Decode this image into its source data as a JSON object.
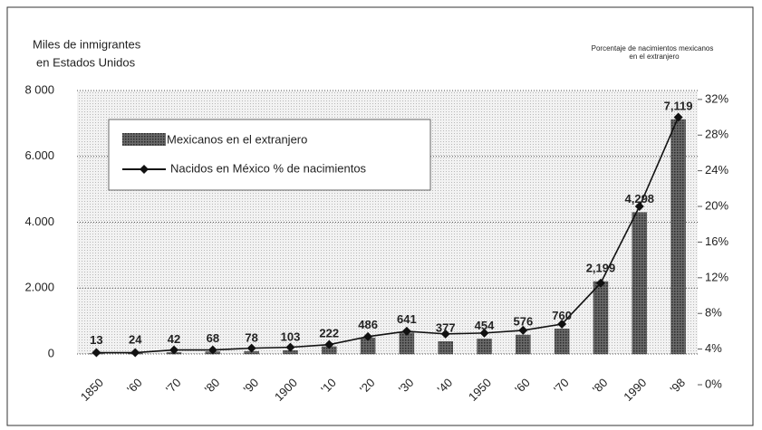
{
  "chart_data": {
    "type": "bar",
    "y_label": [
      "Miles de inmigrantes",
      "en Estados Unidos"
    ],
    "y2_label": [
      "Porcentaje de nacimientos mexicanos",
      "en el extranjero"
    ],
    "categories": [
      "1850",
      "'60",
      "'70",
      "'80",
      "'90",
      "1900",
      "'10",
      "'20",
      "'30",
      "'40",
      "1950",
      "'60",
      "'70",
      "'80",
      "1990",
      "'98"
    ],
    "ylim": [
      0,
      8000
    ],
    "yticks": [
      0,
      {
        "value": 2000,
        "label": "2.000"
      },
      {
        "value": 4000,
        "label": "4.000"
      },
      {
        "value": 6000,
        "label": "6.000"
      },
      {
        "value": 8000,
        "label": "8 000"
      }
    ],
    "y2lim": [
      0,
      33
    ],
    "y2ticks": [
      {
        "value": 0,
        "label": "0%"
      },
      {
        "value": 4,
        "label": "4%"
      },
      {
        "value": 8,
        "label": "8%"
      },
      {
        "value": 12,
        "label": "12%"
      },
      {
        "value": 16,
        "label": "16%"
      },
      {
        "value": 20,
        "label": "20%"
      },
      {
        "value": 24,
        "label": "24%"
      },
      {
        "value": 28,
        "label": "28%"
      },
      {
        "value": 32,
        "label": "32%"
      }
    ],
    "grid": true,
    "series": [
      {
        "name": "Mexicanos en el extranjero",
        "type": "bar",
        "color": "#4a4a4a",
        "values": [
          13,
          24,
          42,
          68,
          78,
          103,
          222,
          486,
          641,
          377,
          454,
          576,
          760,
          2199,
          4298,
          7119
        ],
        "value_labels": [
          "13",
          "24",
          "42",
          "68",
          "78",
          "103",
          "222",
          "486",
          "641",
          "377",
          "454",
          "576",
          "760",
          "2,199",
          "4,298",
          "7,119"
        ]
      },
      {
        "name": "Nacidos en México % de nacimientos",
        "type": "line",
        "axis": "y2",
        "color": "#111111",
        "values": [
          3.6,
          3.6,
          3.9,
          3.9,
          4.1,
          4.2,
          4.5,
          5.4,
          6.0,
          5.7,
          5.8,
          6.1,
          6.8,
          11.4,
          20.0,
          30.0
        ]
      }
    ]
  }
}
